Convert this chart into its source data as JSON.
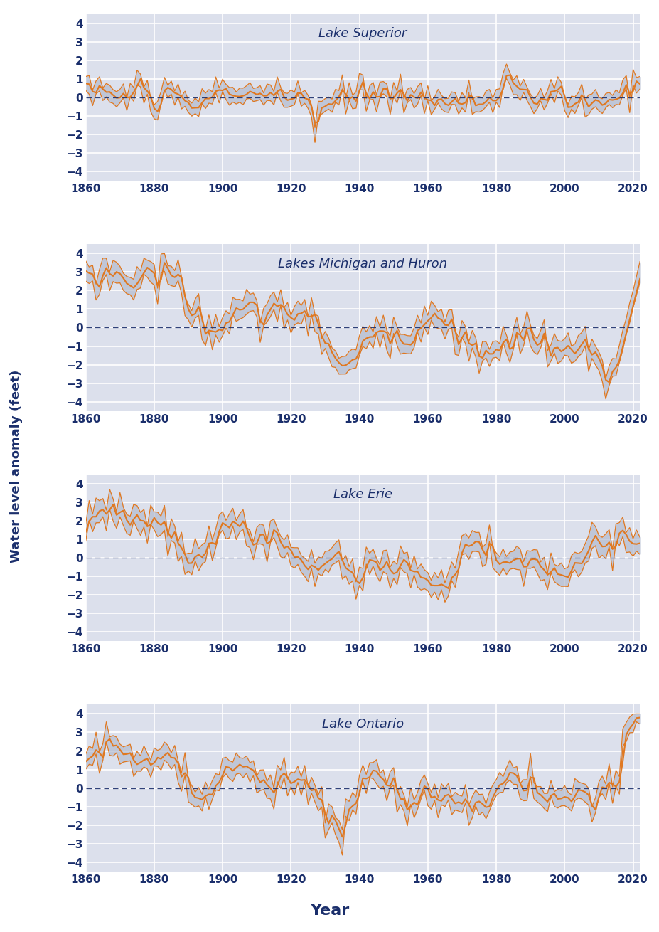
{
  "lakes": [
    "Lake Superior",
    "Lakes Michigan and Huron",
    "Lake Erie",
    "Lake Ontario"
  ],
  "year_start": 1860,
  "year_end": 2022,
  "ylim": [
    -4.5,
    4.5
  ],
  "yticks": [
    -4,
    -3,
    -2,
    -1,
    0,
    1,
    2,
    3,
    4
  ],
  "xticks": [
    1860,
    1880,
    1900,
    1920,
    1940,
    1960,
    1980,
    2000,
    2020
  ],
  "bg_color": "#dce0ec",
  "line_color": "#e07820",
  "band_color": "#b0b8cc",
  "zero_line_color": "#1a2e6b",
  "title_color": "#1a2e6b",
  "tick_color": "#1a2e6b",
  "ylabel": "Water level anomaly (feet)",
  "xlabel": "Year",
  "grid_color": "#ffffff",
  "figure_bg": "#ffffff",
  "title_fontsize": 13,
  "tick_fontsize": 11,
  "ylabel_fontsize": 13,
  "xlabel_fontsize": 16
}
